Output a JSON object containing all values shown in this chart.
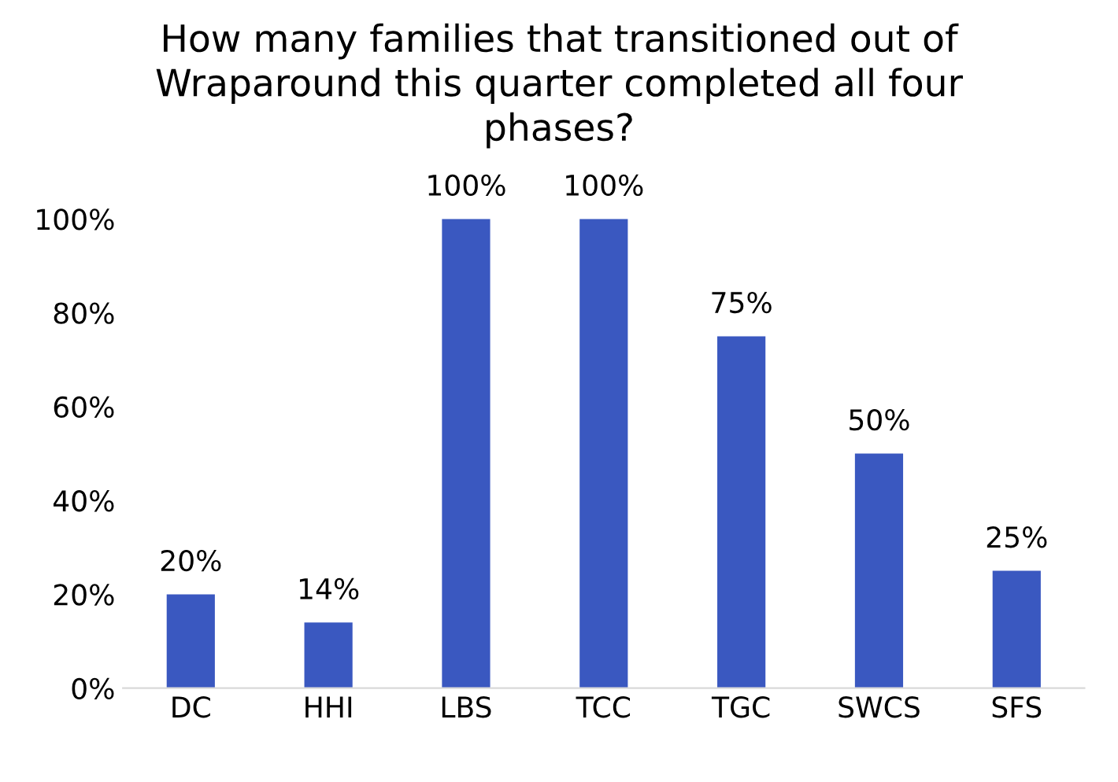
{
  "chart_data": {
    "type": "bar",
    "title": "How many families that transitioned out of\nWraparound this quarter completed all four\nphases?",
    "categories": [
      "DC",
      "HHI",
      "LBS",
      "TCC",
      "TGC",
      "SWCS",
      "SFS"
    ],
    "values": [
      20,
      14,
      100,
      100,
      75,
      50,
      25
    ],
    "value_labels": [
      "20%",
      "14%",
      "100%",
      "100%",
      "75%",
      "50%",
      "25%"
    ],
    "color": "#3a58c0",
    "ylim": [
      0,
      100
    ],
    "yticks": [
      {
        "value": 0,
        "label": "0%"
      },
      {
        "value": 20,
        "label": "20%"
      },
      {
        "value": 40,
        "label": "40%"
      },
      {
        "value": 60,
        "label": "60%"
      },
      {
        "value": 80,
        "label": "80%"
      },
      {
        "value": 100,
        "label": "100%"
      }
    ],
    "grid": false
  }
}
